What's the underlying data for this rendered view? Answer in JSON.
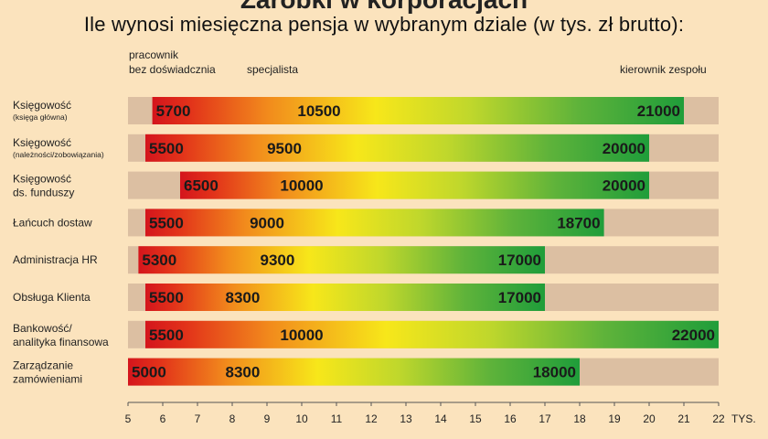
{
  "title_top": "Zarobki w korporacjach",
  "subtitle": "Ile wynosi miesięczna pensja w wybranym dziale (w tys. zł brutto):",
  "level_labels": {
    "junior_line1": "pracownik",
    "junior_line2": "bez doświadcznia",
    "specialist": "specjalista",
    "manager": "kierownik zespołu"
  },
  "colors": {
    "background": "#fbe3bd",
    "track": "#dcbfa2",
    "gradient_start": "#d4151c",
    "gradient_mid": "#f7e71a",
    "gradient_end": "#1f9d3a"
  },
  "chart_data": {
    "type": "bar",
    "xlabel": "TYS.",
    "xlim": [
      5,
      22
    ],
    "xticks": [
      5,
      6,
      7,
      8,
      9,
      10,
      11,
      12,
      13,
      14,
      15,
      16,
      17,
      18,
      19,
      20,
      21,
      22
    ],
    "rows": [
      {
        "label": "Księgowość",
        "sublabel": "(księga główna)",
        "min": 5700,
        "mid": 10500,
        "max": 21000
      },
      {
        "label": "Księgowość",
        "sublabel": "(należności/zobowiązania)",
        "min": 5500,
        "mid": 9500,
        "max": 20000
      },
      {
        "label": "Księgowość",
        "sublabel": "ds. funduszy",
        "min": 6500,
        "mid": 10000,
        "max": 20000
      },
      {
        "label": "Łańcuch dostaw",
        "sublabel": "",
        "min": 5500,
        "mid": 9000,
        "max": 18700
      },
      {
        "label": "Administracja HR",
        "sublabel": "",
        "min": 5300,
        "mid": 9300,
        "max": 17000
      },
      {
        "label": "Obsługa Klienta",
        "sublabel": "",
        "min": 5500,
        "mid": 8300,
        "max": 17000
      },
      {
        "label": "Bankowość/",
        "sublabel": "analityka finansowa",
        "min": 5500,
        "mid": 10000,
        "max": 22000
      },
      {
        "label": "Zarządzanie",
        "sublabel": "zamówieniami",
        "min": 5000,
        "mid": 8300,
        "max": 18000
      }
    ]
  }
}
